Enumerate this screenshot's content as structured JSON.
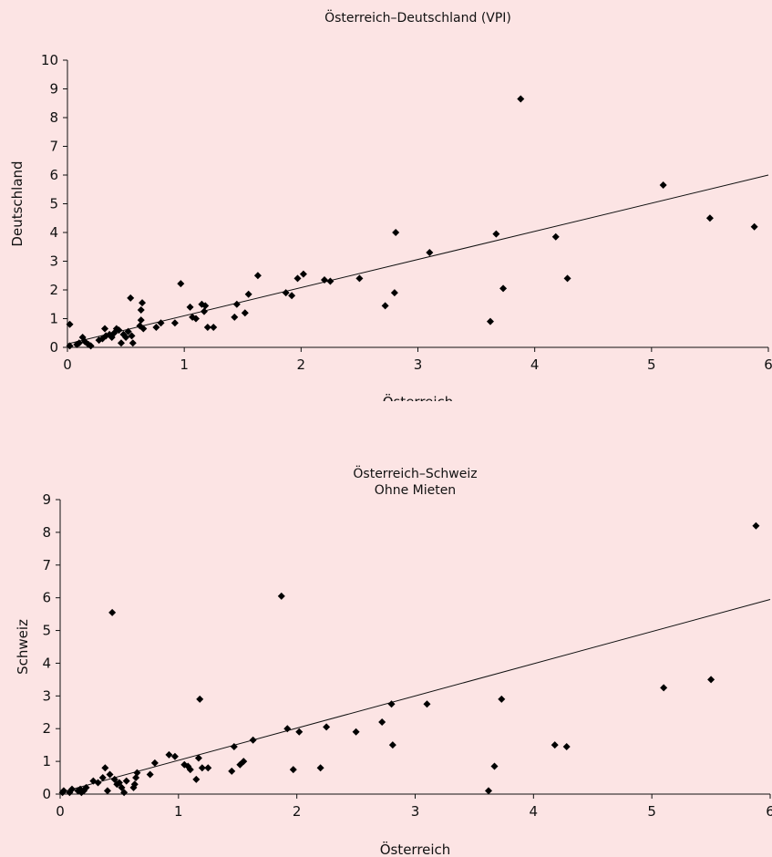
{
  "chart_data": [
    {
      "type": "scatter",
      "title": "Österreich–Deutschland (VPI)",
      "subtitle": "",
      "xlabel": "Österreich",
      "ylabel": "Deutschland",
      "xlim": [
        0,
        6
      ],
      "ylim": [
        0,
        10
      ],
      "xticks": [
        0,
        1,
        2,
        3,
        4,
        5,
        6
      ],
      "yticks": [
        0,
        1,
        2,
        3,
        4,
        5,
        6,
        7,
        8,
        9,
        10
      ],
      "grid": false,
      "trendline": {
        "x": [
          0,
          6
        ],
        "y": [
          0.12,
          6.0
        ]
      },
      "points": [
        [
          0.02,
          0.05
        ],
        [
          0.02,
          0.8
        ],
        [
          0.08,
          0.1
        ],
        [
          0.1,
          0.15
        ],
        [
          0.13,
          0.35
        ],
        [
          0.15,
          0.2
        ],
        [
          0.18,
          0.1
        ],
        [
          0.2,
          0.05
        ],
        [
          0.27,
          0.25
        ],
        [
          0.3,
          0.3
        ],
        [
          0.32,
          0.65
        ],
        [
          0.33,
          0.4
        ],
        [
          0.36,
          0.45
        ],
        [
          0.38,
          0.35
        ],
        [
          0.4,
          0.5
        ],
        [
          0.42,
          0.65
        ],
        [
          0.44,
          0.6
        ],
        [
          0.46,
          0.15
        ],
        [
          0.48,
          0.45
        ],
        [
          0.5,
          0.35
        ],
        [
          0.52,
          0.55
        ],
        [
          0.54,
          1.72
        ],
        [
          0.55,
          0.4
        ],
        [
          0.56,
          0.15
        ],
        [
          0.62,
          0.75
        ],
        [
          0.63,
          0.95
        ],
        [
          0.63,
          1.3
        ],
        [
          0.64,
          1.55
        ],
        [
          0.65,
          0.65
        ],
        [
          0.76,
          0.7
        ],
        [
          0.8,
          0.85
        ],
        [
          0.92,
          0.85
        ],
        [
          0.97,
          2.22
        ],
        [
          1.05,
          1.4
        ],
        [
          1.07,
          1.05
        ],
        [
          1.1,
          1.0
        ],
        [
          1.15,
          1.5
        ],
        [
          1.17,
          1.25
        ],
        [
          1.18,
          1.45
        ],
        [
          1.2,
          0.7
        ],
        [
          1.25,
          0.7
        ],
        [
          1.43,
          1.05
        ],
        [
          1.45,
          1.5
        ],
        [
          1.52,
          1.2
        ],
        [
          1.55,
          1.85
        ],
        [
          1.63,
          2.5
        ],
        [
          1.87,
          1.9
        ],
        [
          1.92,
          1.8
        ],
        [
          1.97,
          2.4
        ],
        [
          2.02,
          2.55
        ],
        [
          2.2,
          2.35
        ],
        [
          2.25,
          2.3
        ],
        [
          2.5,
          2.4
        ],
        [
          2.72,
          1.45
        ],
        [
          2.8,
          1.9
        ],
        [
          2.81,
          4.0
        ],
        [
          3.1,
          3.3
        ],
        [
          3.62,
          0.9
        ],
        [
          3.67,
          3.95
        ],
        [
          3.73,
          2.05
        ],
        [
          3.88,
          8.65
        ],
        [
          4.18,
          3.85
        ],
        [
          4.28,
          2.4
        ],
        [
          5.1,
          5.65
        ],
        [
          5.5,
          4.5
        ],
        [
          5.88,
          4.2
        ]
      ]
    },
    {
      "type": "scatter",
      "title": "Österreich–Schweiz",
      "subtitle": "Ohne Mieten",
      "xlabel": "Österreich",
      "ylabel": "Schweiz",
      "xlim": [
        0,
        6
      ],
      "ylim": [
        0,
        9
      ],
      "xticks": [
        0,
        1,
        2,
        3,
        4,
        5,
        6
      ],
      "yticks": [
        0,
        1,
        2,
        3,
        4,
        5,
        6,
        7,
        8,
        9
      ],
      "grid": false,
      "trendline": {
        "x": [
          0,
          6
        ],
        "y": [
          0.05,
          5.95
        ]
      },
      "points": [
        [
          0.02,
          0.05
        ],
        [
          0.03,
          0.1
        ],
        [
          0.08,
          0.05
        ],
        [
          0.1,
          0.15
        ],
        [
          0.15,
          0.1
        ],
        [
          0.17,
          0.15
        ],
        [
          0.18,
          0.05
        ],
        [
          0.2,
          0.1
        ],
        [
          0.22,
          0.2
        ],
        [
          0.28,
          0.4
        ],
        [
          0.32,
          0.35
        ],
        [
          0.36,
          0.5
        ],
        [
          0.38,
          0.8
        ],
        [
          0.4,
          0.1
        ],
        [
          0.42,
          0.6
        ],
        [
          0.44,
          5.55
        ],
        [
          0.46,
          0.45
        ],
        [
          0.48,
          0.3
        ],
        [
          0.5,
          0.35
        ],
        [
          0.52,
          0.2
        ],
        [
          0.54,
          0.05
        ],
        [
          0.56,
          0.4
        ],
        [
          0.62,
          0.2
        ],
        [
          0.63,
          0.3
        ],
        [
          0.64,
          0.5
        ],
        [
          0.65,
          0.65
        ],
        [
          0.76,
          0.6
        ],
        [
          0.8,
          0.95
        ],
        [
          0.92,
          1.2
        ],
        [
          0.97,
          1.15
        ],
        [
          1.05,
          0.9
        ],
        [
          1.08,
          0.85
        ],
        [
          1.1,
          0.75
        ],
        [
          1.15,
          0.45
        ],
        [
          1.17,
          1.1
        ],
        [
          1.18,
          2.9
        ],
        [
          1.2,
          0.8
        ],
        [
          1.25,
          0.8
        ],
        [
          1.45,
          0.7
        ],
        [
          1.47,
          1.45
        ],
        [
          1.52,
          0.9
        ],
        [
          1.55,
          1.0
        ],
        [
          1.63,
          1.65
        ],
        [
          1.87,
          6.05
        ],
        [
          1.92,
          2.0
        ],
        [
          1.97,
          0.75
        ],
        [
          2.02,
          1.9
        ],
        [
          2.2,
          0.8
        ],
        [
          2.25,
          2.05
        ],
        [
          2.5,
          1.9
        ],
        [
          2.72,
          2.2
        ],
        [
          2.8,
          2.75
        ],
        [
          2.81,
          1.5
        ],
        [
          3.1,
          2.75
        ],
        [
          3.62,
          0.1
        ],
        [
          3.67,
          0.85
        ],
        [
          3.73,
          2.9
        ],
        [
          4.18,
          1.5
        ],
        [
          4.28,
          1.45
        ],
        [
          5.1,
          3.25
        ],
        [
          5.5,
          3.5
        ],
        [
          5.88,
          8.2
        ]
      ]
    }
  ]
}
